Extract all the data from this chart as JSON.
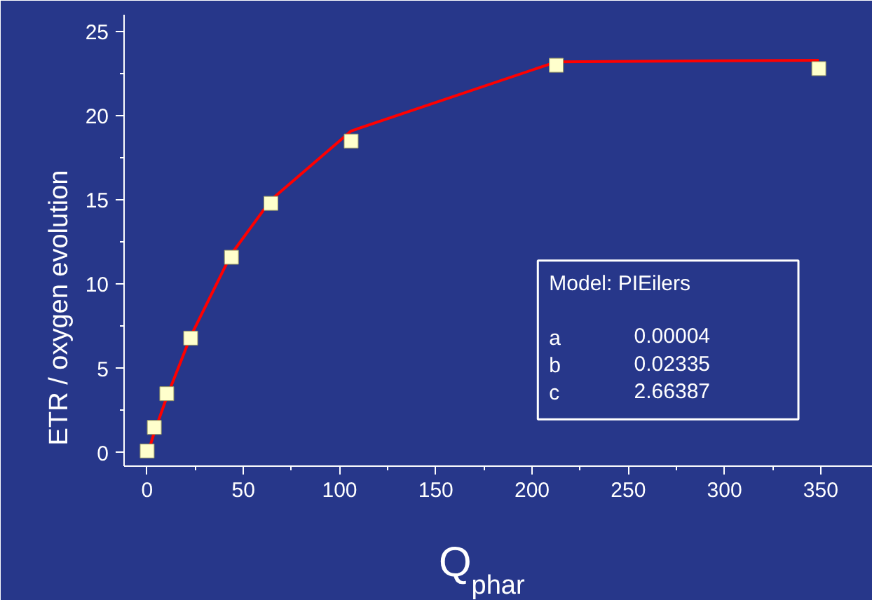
{
  "chart_data": {
    "type": "scatter",
    "xlabel": "Q$_{phar}$",
    "ylabel": "ETR / oxygen evolution",
    "xlim": [
      -12,
      377
    ],
    "ylim": [
      -0.8,
      26
    ],
    "xticks": [
      0,
      50,
      100,
      150,
      200,
      250,
      300,
      350
    ],
    "yticks": [
      0,
      5,
      10,
      15,
      20,
      25
    ],
    "grid": false,
    "marker": "square",
    "series": [
      {
        "type": "line",
        "marker": "none",
        "color": "#ff0000",
        "x": [
          1,
          3.7,
          10.2,
          22.6,
          43.8,
          64.3,
          106,
          212.6,
          349
        ],
        "values": [
          0.2,
          1.2,
          3.3,
          6.9,
          11.8,
          15.0,
          19.1,
          23.2,
          23.3
        ]
      },
      {
        "color": "#ffffcc",
        "x": [
          0,
          3.7,
          10.2,
          22.6,
          43.8,
          64.3,
          106,
          212.6,
          349
        ],
        "values": [
          0.1,
          1.5,
          3.5,
          6.8,
          11.6,
          14.8,
          18.5,
          23.0,
          22.8
        ]
      }
    ],
    "annotations": [
      "Model: PIEilers",
      "a",
      "0.00004",
      "b",
      "0.02335",
      "c",
      "2.66387"
    ]
  }
}
